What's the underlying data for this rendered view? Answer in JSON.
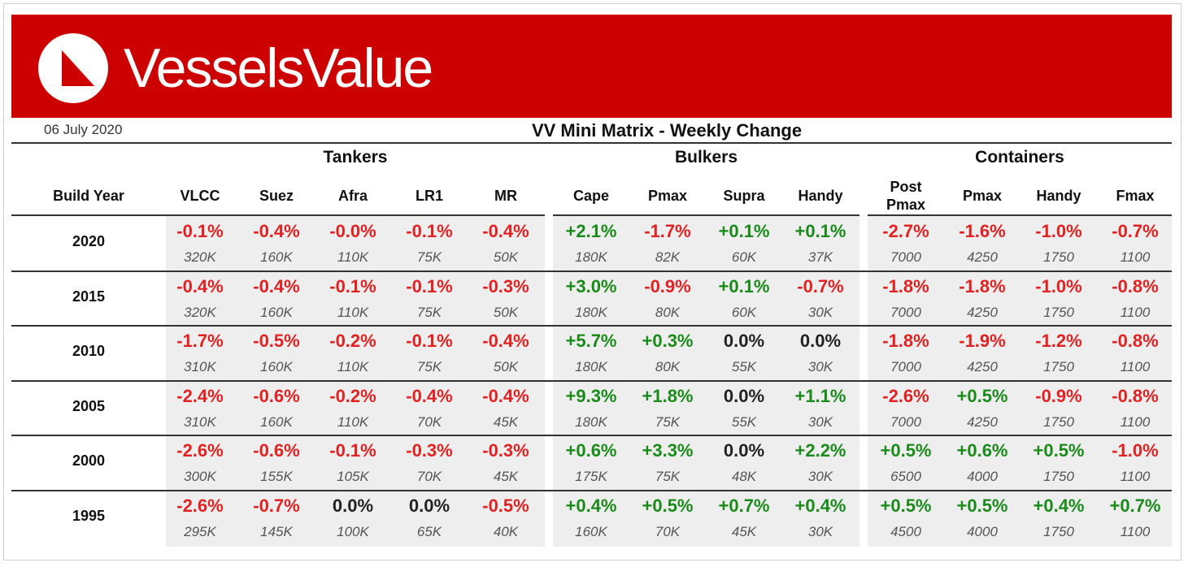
{
  "brand": {
    "name": "VesselsValue",
    "color": "#cc0000"
  },
  "header": {
    "date": "06 July 2020",
    "title": "VV Mini Matrix - Weekly Change"
  },
  "groups": [
    {
      "name": "Tankers"
    },
    {
      "name": "Bulkers"
    },
    {
      "name": "Containers"
    }
  ],
  "row_header_label": "Build Year",
  "columns": [
    "VLCC",
    "Suez",
    "Afra",
    "LR1",
    "MR",
    "Cape",
    "Pmax",
    "Supra",
    "Handy",
    "Post\nPmax",
    "Pmax",
    "Handy",
    "Fmax"
  ],
  "colors": {
    "negative": "#e02222",
    "positive": "#1a8a1a",
    "neutral": "#222222"
  },
  "rows": [
    {
      "year": "2020",
      "changes": [
        "-0.1%",
        "-0.4%",
        "-0.0%",
        "-0.1%",
        "-0.4%",
        "+2.1%",
        "-1.7%",
        "+0.1%",
        "+0.1%",
        "-2.7%",
        "-1.6%",
        "-1.0%",
        "-0.7%"
      ],
      "values": [
        "320K",
        "160K",
        "110K",
        "75K",
        "50K",
        "180K",
        "82K",
        "60K",
        "37K",
        "7000",
        "4250",
        "1750",
        "1100"
      ]
    },
    {
      "year": "2015",
      "changes": [
        "-0.4%",
        "-0.4%",
        "-0.1%",
        "-0.1%",
        "-0.3%",
        "+3.0%",
        "-0.9%",
        "+0.1%",
        "-0.7%",
        "-1.8%",
        "-1.8%",
        "-1.0%",
        "-0.8%"
      ],
      "values": [
        "320K",
        "160K",
        "110K",
        "75K",
        "50K",
        "180K",
        "80K",
        "60K",
        "30K",
        "7000",
        "4250",
        "1750",
        "1100"
      ]
    },
    {
      "year": "2010",
      "changes": [
        "-1.7%",
        "-0.5%",
        "-0.2%",
        "-0.1%",
        "-0.4%",
        "+5.7%",
        "+0.3%",
        "0.0%",
        "0.0%",
        "-1.8%",
        "-1.9%",
        "-1.2%",
        "-0.8%"
      ],
      "values": [
        "310K",
        "160K",
        "110K",
        "75K",
        "50K",
        "180K",
        "80K",
        "55K",
        "30K",
        "7000",
        "4250",
        "1750",
        "1100"
      ]
    },
    {
      "year": "2005",
      "changes": [
        "-2.4%",
        "-0.6%",
        "-0.2%",
        "-0.4%",
        "-0.4%",
        "+9.3%",
        "+1.8%",
        "0.0%",
        "+1.1%",
        "-2.6%",
        "+0.5%",
        "-0.9%",
        "-0.8%"
      ],
      "values": [
        "310K",
        "160K",
        "110K",
        "70K",
        "45K",
        "180K",
        "75K",
        "55K",
        "30K",
        "7000",
        "4250",
        "1750",
        "1100"
      ]
    },
    {
      "year": "2000",
      "changes": [
        "-2.6%",
        "-0.6%",
        "-0.1%",
        "-0.3%",
        "-0.3%",
        "+0.6%",
        "+3.3%",
        "0.0%",
        "+2.2%",
        "+0.5%",
        "+0.6%",
        "+0.5%",
        "-1.0%"
      ],
      "values": [
        "300K",
        "155K",
        "105K",
        "70K",
        "45K",
        "175K",
        "75K",
        "48K",
        "30K",
        "6500",
        "4000",
        "1750",
        "1100"
      ]
    },
    {
      "year": "1995",
      "changes": [
        "-2.6%",
        "-0.7%",
        "0.0%",
        "0.0%",
        "-0.5%",
        "+0.4%",
        "+0.5%",
        "+0.7%",
        "+0.4%",
        "+0.5%",
        "+0.5%",
        "+0.4%",
        "+0.7%"
      ],
      "values": [
        "295K",
        "145K",
        "100K",
        "65K",
        "40K",
        "160K",
        "70K",
        "45K",
        "30K",
        "4500",
        "4000",
        "1750",
        "1100"
      ]
    }
  ]
}
